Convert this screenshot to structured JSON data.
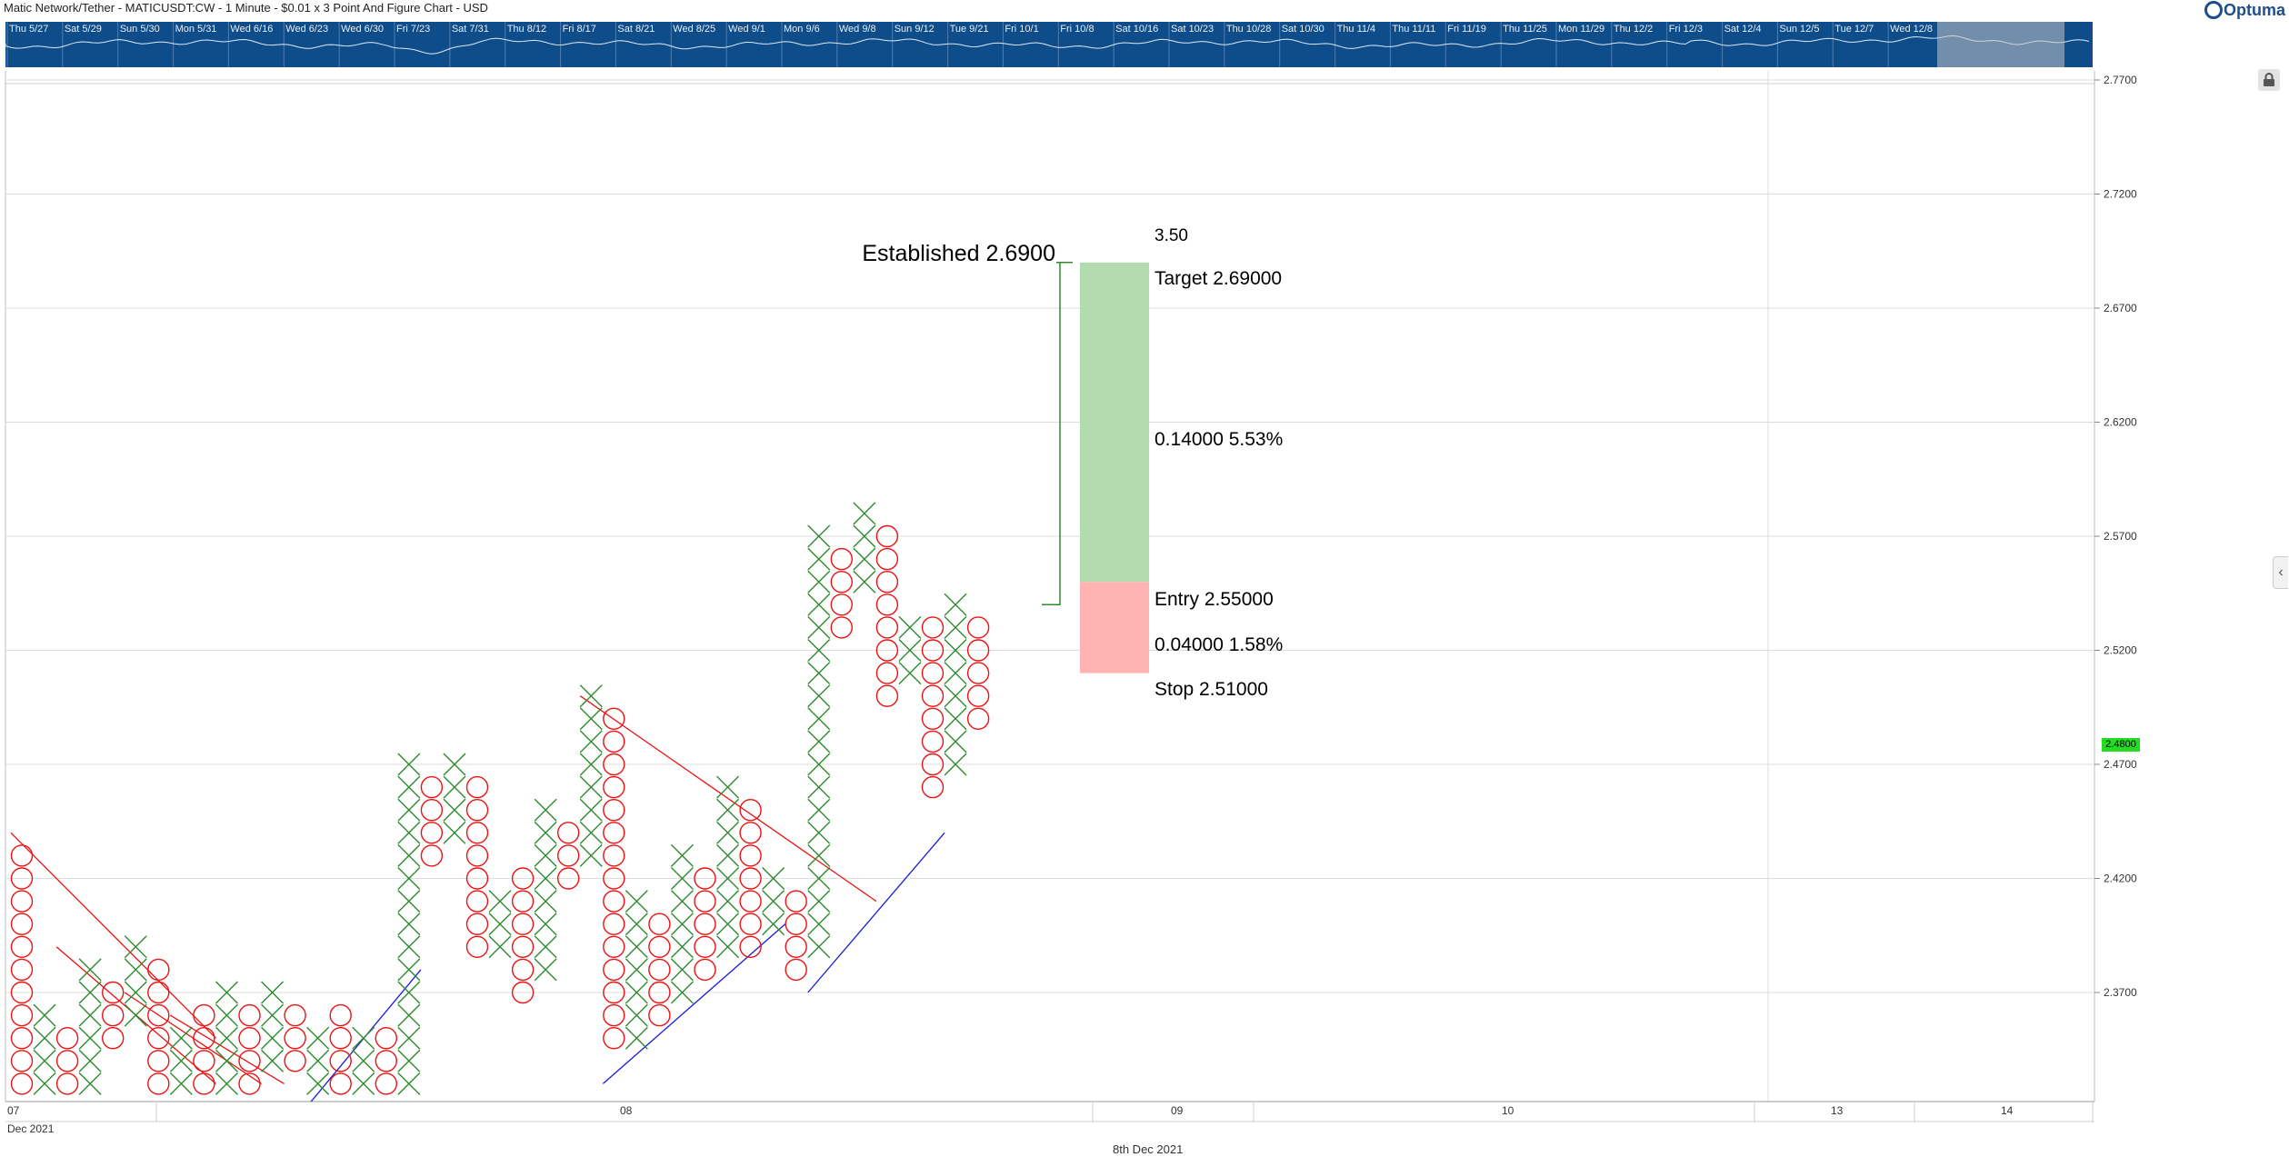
{
  "header": {
    "title": "Matic Network/Tether - MATICUSDT:CW - 1 Minute - $0.01 x 3 Point And Figure Chart - USD",
    "logo": "Optuma"
  },
  "navigator": {
    "labels": [
      "Thu 5/27",
      "Sat 5/29",
      "Sun 5/30",
      "Mon 5/31",
      "Wed 6/16",
      "Wed 6/23",
      "Wed 6/30",
      "Fri 7/23",
      "Sat 7/31",
      "Thu 8/12",
      "Fri 8/17",
      "Sat 8/21",
      "Wed 8/25",
      "Wed 9/1",
      "Mon 9/6",
      "Wed 9/8",
      "Sun 9/12",
      "Tue 9/21",
      "Fri 10/1",
      "Fri 10/8",
      "Sat 10/16",
      "Sat 10/23",
      "Thu 10/28",
      "Sat 10/30",
      "Thu 11/4",
      "Thu 11/11",
      "Fri 11/19",
      "Thu 11/25",
      "Mon 11/29",
      "Thu 12/2",
      "Fri 12/3",
      "Sat 12/4",
      "Sun 12/5",
      "Tue 12/7",
      "Wed 12/8"
    ]
  },
  "current_price": "2.4800",
  "x_axis": {
    "month": "Dec 2021",
    "footer_date": "8th Dec 2021",
    "labels": [
      "07",
      "08",
      "09",
      "10",
      "13",
      "14"
    ]
  },
  "annotations": {
    "established": "Established 2.6900",
    "boxes": "3.50",
    "target": "Target  2.69000",
    "reward": "0.14000   5.53%",
    "entry": "Entry   2.55000",
    "risk": "0.04000   1.58%",
    "stop": "Stop   2.51000"
  },
  "colors": {
    "x_mark": "#2e8b2e",
    "o_mark": "#ee1111",
    "target_zone": "#b2dbb0",
    "stop_zone": "#ffb3b3",
    "resistance_line": "#ee1111",
    "support_line": "#1a1add",
    "navigator_bg": "#0f4c8a",
    "price_tag": "#22dd22"
  },
  "chart_data": {
    "type": "point-and-figure",
    "title": "Matic Network/Tether - MATICUSDT:CW - 1 Minute - $0.01 x 3 Point And Figure Chart - USD",
    "box_size": 0.01,
    "reversal": 3,
    "ylim": [
      2.32,
      2.78
    ],
    "y_ticks": [
      "2.7700",
      "2.7200",
      "2.6700",
      "2.6200",
      "2.5700",
      "2.5200",
      "2.4700",
      "2.4200",
      "2.3700"
    ],
    "columns": [
      {
        "type": "O",
        "high": 2.43,
        "low": 2.33
      },
      {
        "type": "X",
        "high": 2.36,
        "low": 2.33
      },
      {
        "type": "O",
        "high": 2.35,
        "low": 2.33
      },
      {
        "type": "X",
        "high": 2.38,
        "low": 2.33
      },
      {
        "type": "O",
        "high": 2.37,
        "low": 2.35
      },
      {
        "type": "X",
        "high": 2.39,
        "low": 2.36
      },
      {
        "type": "O",
        "high": 2.38,
        "low": 2.33
      },
      {
        "type": "X",
        "high": 2.35,
        "low": 2.33
      },
      {
        "type": "O",
        "high": 2.36,
        "low": 2.33
      },
      {
        "type": "X",
        "high": 2.37,
        "low": 2.33
      },
      {
        "type": "O",
        "high": 2.36,
        "low": 2.33
      },
      {
        "type": "X",
        "high": 2.37,
        "low": 2.34
      },
      {
        "type": "O",
        "high": 2.36,
        "low": 2.34
      },
      {
        "type": "X",
        "high": 2.35,
        "low": 2.33
      },
      {
        "type": "O",
        "high": 2.36,
        "low": 2.33
      },
      {
        "type": "X",
        "high": 2.35,
        "low": 2.33
      },
      {
        "type": "O",
        "high": 2.35,
        "low": 2.33
      },
      {
        "type": "X",
        "high": 2.47,
        "low": 2.33
      },
      {
        "type": "O",
        "high": 2.46,
        "low": 2.43
      },
      {
        "type": "X",
        "high": 2.47,
        "low": 2.44
      },
      {
        "type": "O",
        "high": 2.46,
        "low": 2.39
      },
      {
        "type": "X",
        "high": 2.41,
        "low": 2.39
      },
      {
        "type": "O",
        "high": 2.42,
        "low": 2.37
      },
      {
        "type": "X",
        "high": 2.45,
        "low": 2.38
      },
      {
        "type": "O",
        "high": 2.44,
        "low": 2.42
      },
      {
        "type": "X",
        "high": 2.5,
        "low": 2.43
      },
      {
        "type": "O",
        "high": 2.49,
        "low": 2.35
      },
      {
        "type": "X",
        "high": 2.41,
        "low": 2.35
      },
      {
        "type": "O",
        "high": 2.4,
        "low": 2.36
      },
      {
        "type": "X",
        "high": 2.43,
        "low": 2.37
      },
      {
        "type": "O",
        "high": 2.42,
        "low": 2.38
      },
      {
        "type": "X",
        "high": 2.46,
        "low": 2.39
      },
      {
        "type": "O",
        "high": 2.45,
        "low": 2.39
      },
      {
        "type": "X",
        "high": 2.42,
        "low": 2.4
      },
      {
        "type": "O",
        "high": 2.41,
        "low": 2.38
      },
      {
        "type": "X",
        "high": 2.57,
        "low": 2.39
      },
      {
        "type": "O",
        "high": 2.56,
        "low": 2.53
      },
      {
        "type": "X",
        "high": 2.58,
        "low": 2.55
      },
      {
        "type": "O",
        "high": 2.57,
        "low": 2.5
      },
      {
        "type": "X",
        "high": 2.53,
        "low": 2.51
      },
      {
        "type": "O",
        "high": 2.53,
        "low": 2.46
      },
      {
        "type": "X",
        "high": 2.54,
        "low": 2.47
      },
      {
        "type": "O",
        "high": 2.53,
        "low": 2.49
      }
    ],
    "trendlines": [
      {
        "kind": "resistance",
        "segments": [
          [
            0,
            2.44,
            9,
            2.35
          ],
          [
            2,
            2.39,
            9,
            2.33
          ],
          [
            5,
            2.37,
            11,
            2.33
          ],
          [
            7,
            2.36,
            12,
            2.33
          ],
          [
            25,
            2.5,
            38,
            2.41
          ]
        ]
      },
      {
        "kind": "support",
        "segments": [
          [
            13,
            2.32,
            18,
            2.38
          ],
          [
            26,
            2.33,
            34,
            2.4
          ],
          [
            35,
            2.37,
            41,
            2.44
          ]
        ]
      }
    ],
    "trade": {
      "established": 2.69,
      "target": 2.69,
      "entry": 2.55,
      "stop": 2.51,
      "reward": 0.14,
      "reward_pct": 5.53,
      "risk": 0.04,
      "risk_pct": 1.58,
      "ratio": 3.5
    }
  }
}
